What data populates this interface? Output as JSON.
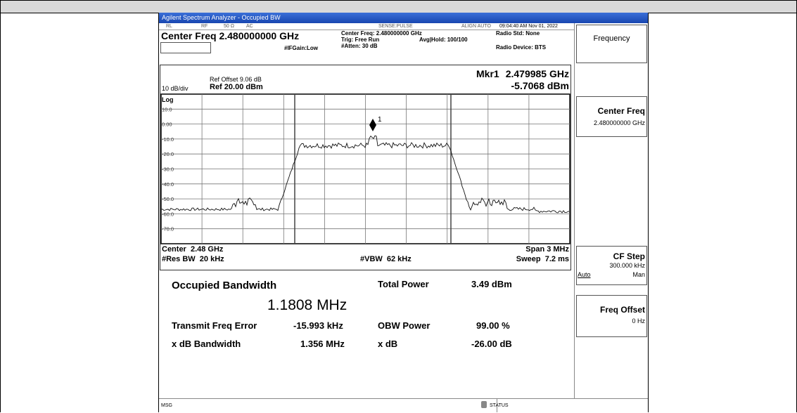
{
  "window": {
    "title": "Agilent Spectrum Analyzer - Occupied BW"
  },
  "status_bar": {
    "mode": "RL",
    "rf": "RF",
    "impedance": "50 Ω",
    "coupling": "AC",
    "sense": "SENSE:PULSE",
    "align": "ALIGN AUTO",
    "timestamp": "09:04:40 AM Nov 01, 2022"
  },
  "header": {
    "center_freq": "Center Freq 2.480000000 GHz",
    "center_freq_small": "Center Freq: 2.480000000 GHz",
    "trig": "Trig: Free Run",
    "avg_hold": "Avg|Hold: 100/100",
    "if_gain": "#IFGain:Low",
    "atten": "#Atten: 30 dB",
    "radio_std": "Radio Std: None",
    "radio_device": "Radio Device: BTS"
  },
  "plot": {
    "ref_offset": "Ref Offset 9.06 dB",
    "scale": "10 dB/div",
    "ref_level": "Ref 20.00 dBm",
    "log": "Log",
    "marker_label": "Mkr1",
    "marker_freq": "2.479985 GHz",
    "marker_level": "-5.7068 dBm",
    "marker_number": "1",
    "yticks": [
      "10.0",
      "0.00",
      "-10.0",
      "-20.0",
      "-30.0",
      "-40.0",
      "-50.0",
      "-60.0",
      "-70.0"
    ],
    "center": "Center  2.48 GHz",
    "span": "Span 3 MHz",
    "res_bw": "#Res BW  20 kHz",
    "vbw": "#VBW  62 kHz",
    "sweep": "Sweep  7.2 ms"
  },
  "results": {
    "occupied_bw_label": "Occupied Bandwidth",
    "occupied_bw": "1.1808 MHz",
    "total_power_label": "Total Power",
    "total_power": "3.49 dBm",
    "freq_error_label": "Transmit Freq Error",
    "freq_error": "-15.993 kHz",
    "obw_power_label": "OBW Power",
    "obw_power": "99.00 %",
    "xdb_bw_label": "x dB Bandwidth",
    "xdb_bw": "1.356 MHz",
    "xdb_label": "x dB",
    "xdb": "-26.00 dB"
  },
  "softkeys": {
    "menu": "Frequency",
    "center_freq": "Center Freq",
    "center_freq_value": "2.480000000 GHz",
    "cf_step": "CF Step",
    "cf_step_value": "300.000 kHz",
    "auto": "Auto",
    "man": "Man",
    "freq_offset": "Freq Offset",
    "freq_offset_value": "0 Hz"
  },
  "footer": {
    "msg": "MSG",
    "status": "STATUS"
  }
}
